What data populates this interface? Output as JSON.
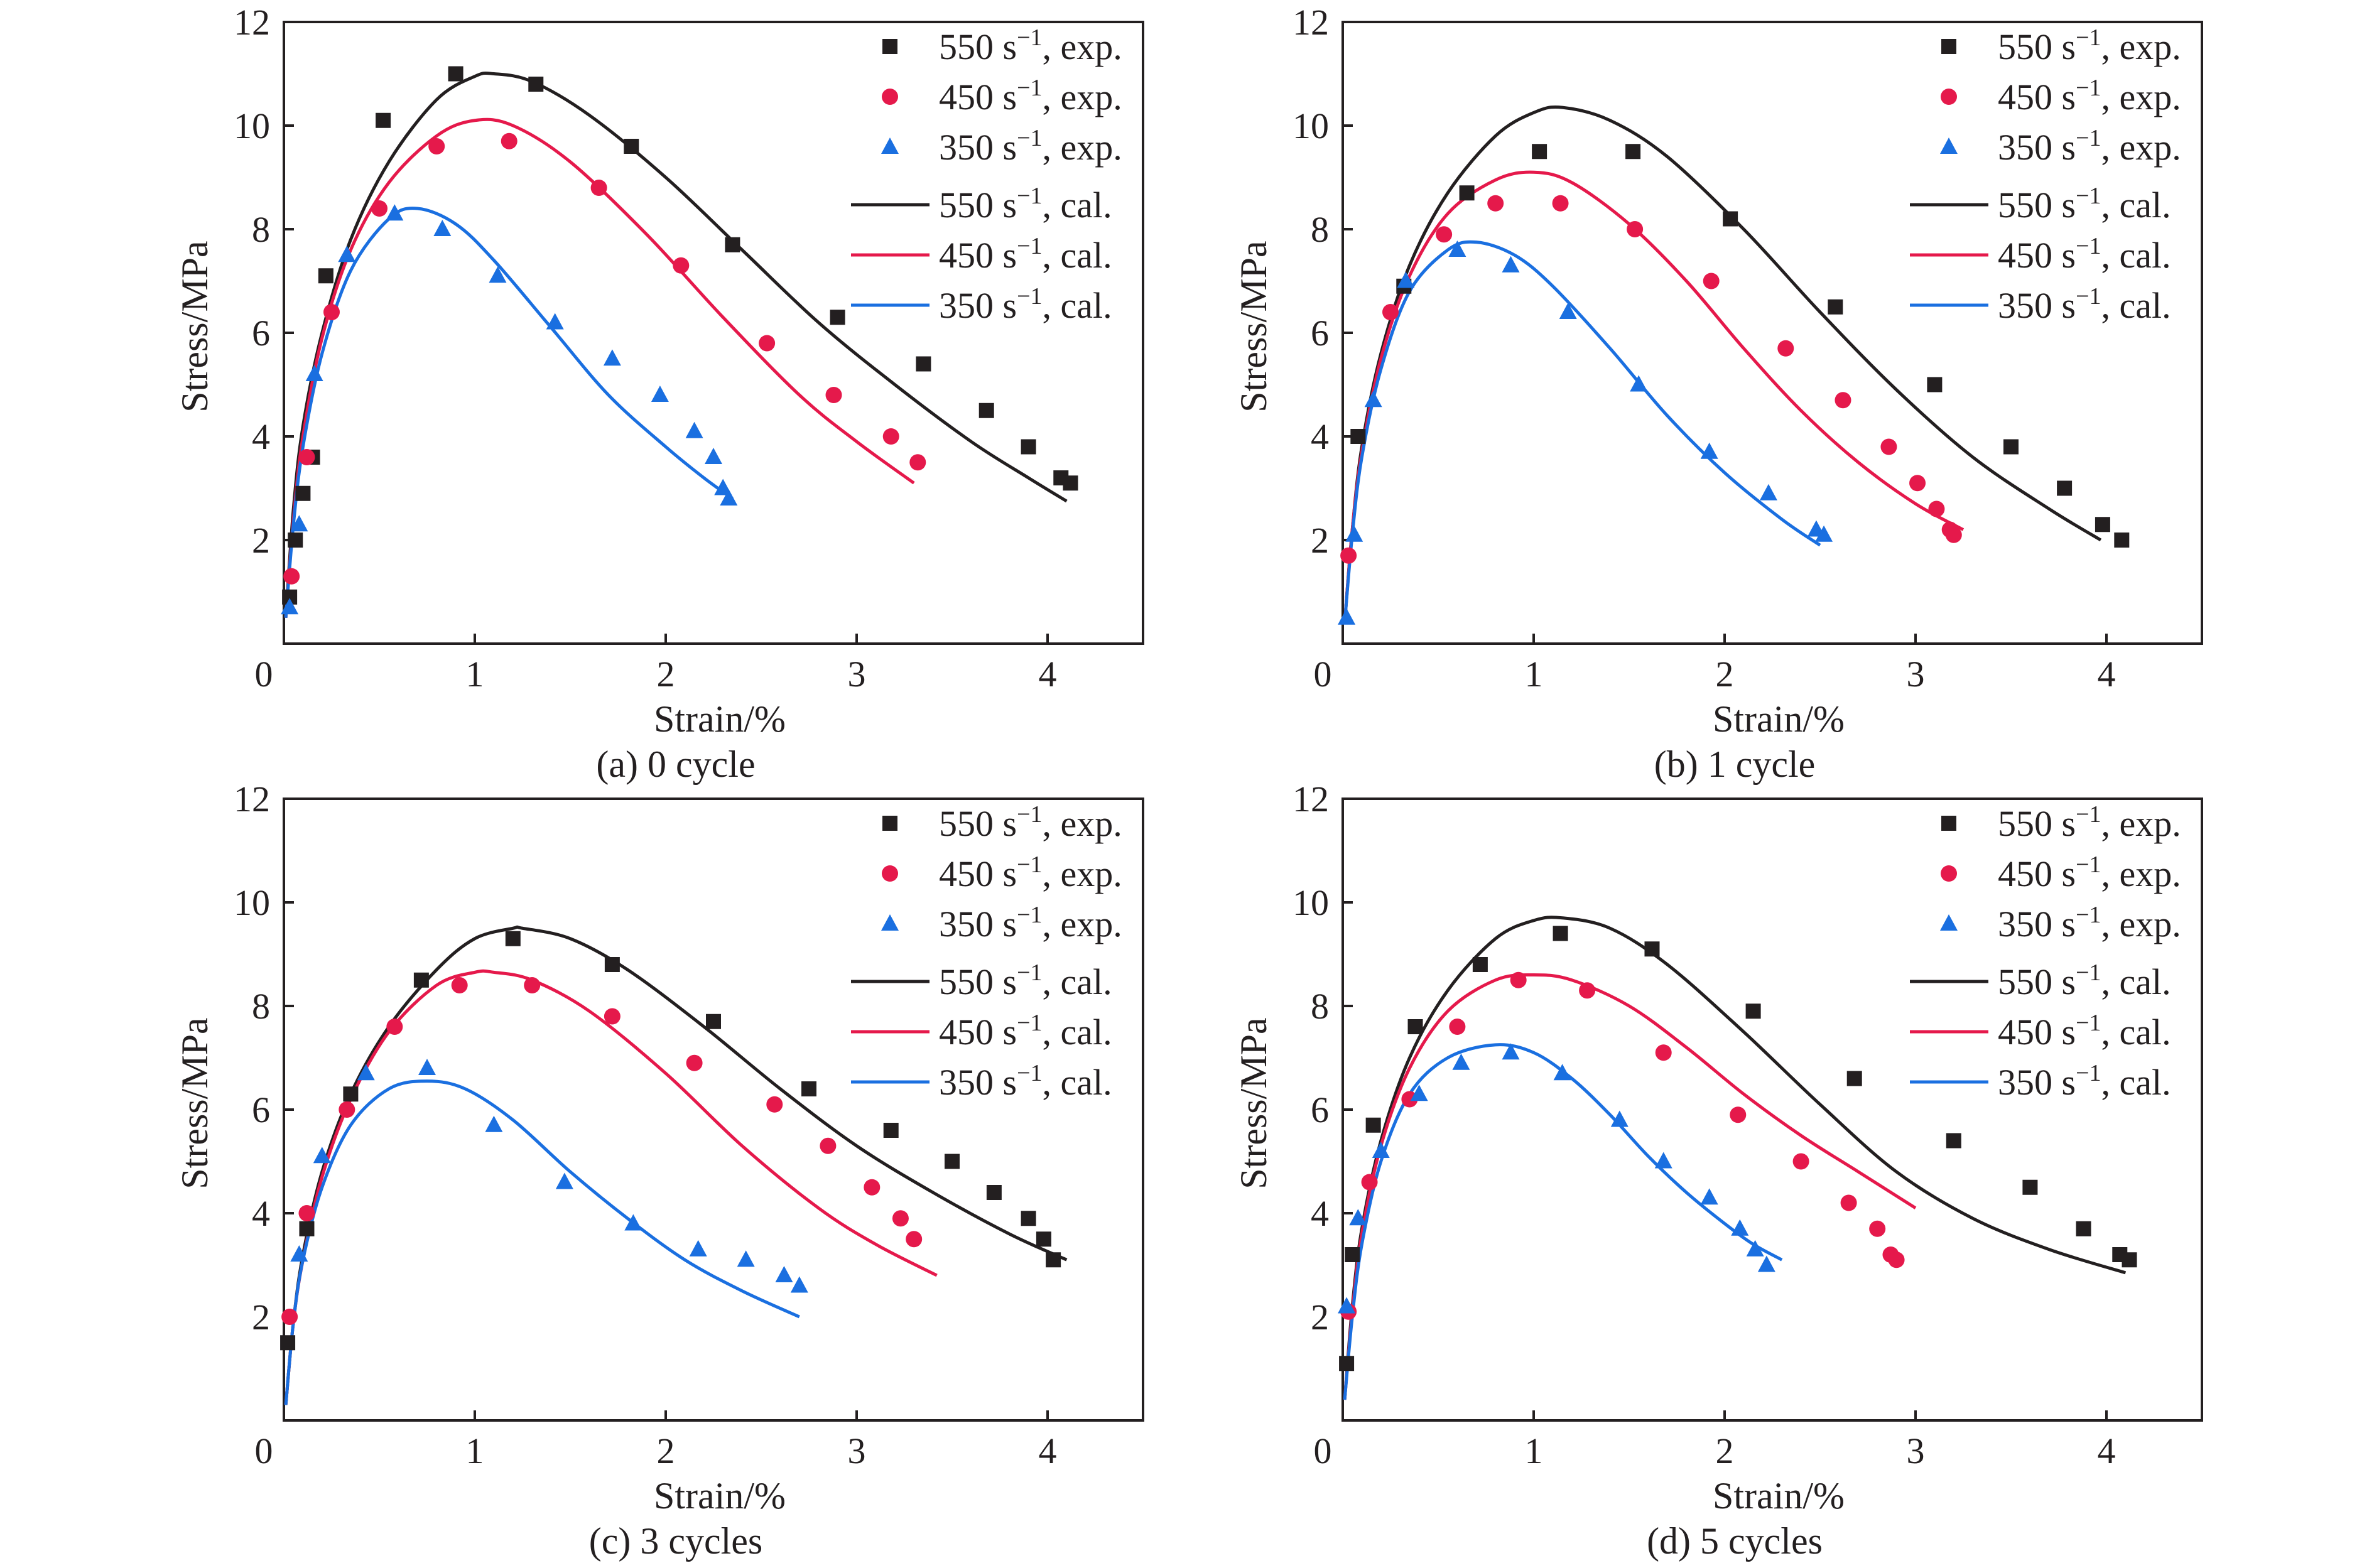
{
  "colors": {
    "black": "#231f20",
    "red": "#e5194b",
    "blue": "#1a6fe0"
  },
  "chart_data": [
    {
      "type": "scatter",
      "caption": "(a) 0 cycle",
      "xlabel": "Strain/%",
      "ylabel": "Stress/MPa",
      "xlim": [
        0,
        4.5
      ],
      "ylim": [
        0,
        12
      ],
      "xticks": [
        "0",
        "1",
        "2",
        "3",
        "4"
      ],
      "yticks": [
        "2",
        "4",
        "6",
        "8",
        "10",
        "12"
      ],
      "legend_position": "top-right",
      "series": [
        {
          "name": "550 s−1, exp.",
          "rate": "550",
          "kind": "exp.",
          "marker": "square",
          "color": "#231f20",
          "x": [
            0.03,
            0.06,
            0.1,
            0.15,
            0.22,
            0.52,
            0.9,
            1.32,
            1.82,
            2.35,
            2.9,
            3.35,
            3.68,
            3.9,
            4.07,
            4.12
          ],
          "y": [
            0.9,
            2.0,
            2.9,
            3.6,
            7.1,
            10.1,
            11.0,
            10.8,
            9.6,
            7.7,
            6.3,
            5.4,
            4.5,
            3.8,
            3.2,
            3.1
          ]
        },
        {
          "name": "450 s−1, exp.",
          "rate": "450",
          "kind": "exp.",
          "marker": "circle",
          "color": "#e5194b",
          "x": [
            0.04,
            0.12,
            0.25,
            0.5,
            0.8,
            1.18,
            1.65,
            2.08,
            2.53,
            2.88,
            3.18,
            3.32
          ],
          "y": [
            1.3,
            3.6,
            6.4,
            8.4,
            9.6,
            9.7,
            8.8,
            7.3,
            5.8,
            4.8,
            4.0,
            3.5
          ]
        },
        {
          "name": "350 s−1, exp.",
          "rate": "350",
          "kind": "exp.",
          "marker": "triangle",
          "color": "#1a6fe0",
          "x": [
            0.03,
            0.08,
            0.16,
            0.33,
            0.58,
            0.83,
            1.12,
            1.42,
            1.72,
            1.97,
            2.15,
            2.25,
            2.3,
            2.33
          ],
          "y": [
            0.7,
            2.3,
            5.2,
            7.5,
            8.3,
            8.0,
            7.1,
            6.2,
            5.5,
            4.8,
            4.1,
            3.6,
            3.0,
            2.8
          ]
        },
        {
          "name": "550 s−1, cal.",
          "rate": "550",
          "kind": "cal.",
          "marker": "line",
          "color": "#231f20",
          "x": [
            0.01,
            0.05,
            0.1,
            0.2,
            0.35,
            0.55,
            0.8,
            1.0,
            1.1,
            1.3,
            1.6,
            2.0,
            2.4,
            2.8,
            3.2,
            3.6,
            3.9,
            4.1
          ],
          "y": [
            0.5,
            2.6,
            4.2,
            6.0,
            7.8,
            9.3,
            10.5,
            10.95,
            11.0,
            10.85,
            10.2,
            9.0,
            7.6,
            6.2,
            5.0,
            3.9,
            3.2,
            2.75
          ]
        },
        {
          "name": "450 s−1, cal.",
          "rate": "450",
          "kind": "cal.",
          "marker": "line",
          "color": "#e5194b",
          "x": [
            0.01,
            0.05,
            0.1,
            0.2,
            0.35,
            0.55,
            0.8,
            1.0,
            1.2,
            1.5,
            1.9,
            2.3,
            2.7,
            3.0,
            3.3
          ],
          "y": [
            0.5,
            2.4,
            4.0,
            5.9,
            7.6,
            8.9,
            9.8,
            10.1,
            10.0,
            9.3,
            7.9,
            6.3,
            4.8,
            3.9,
            3.1
          ]
        },
        {
          "name": "350 s−1, cal.",
          "rate": "350",
          "kind": "cal.",
          "marker": "line",
          "color": "#1a6fe0",
          "x": [
            0.01,
            0.05,
            0.1,
            0.2,
            0.35,
            0.55,
            0.7,
            0.9,
            1.1,
            1.4,
            1.7,
            2.0,
            2.2,
            2.35
          ],
          "y": [
            0.5,
            2.3,
            3.8,
            5.6,
            7.2,
            8.2,
            8.4,
            8.1,
            7.4,
            6.1,
            4.8,
            3.8,
            3.2,
            2.8
          ]
        }
      ]
    },
    {
      "type": "scatter",
      "caption": "(b) 1 cycle",
      "xlabel": "Strain/%",
      "ylabel": "Stress/MPa",
      "xlim": [
        0,
        4.5
      ],
      "ylim": [
        0,
        12
      ],
      "xticks": [
        "0",
        "1",
        "2",
        "3",
        "4"
      ],
      "yticks": [
        "2",
        "4",
        "6",
        "8",
        "10",
        "12"
      ],
      "legend_position": "top-right",
      "series": [
        {
          "name": "550 s−1, exp.",
          "rate": "550",
          "kind": "exp.",
          "marker": "square",
          "color": "#231f20",
          "x": [
            0.08,
            0.32,
            0.65,
            1.03,
            1.52,
            2.03,
            2.58,
            3.1,
            3.5,
            3.78,
            3.98,
            4.08
          ],
          "y": [
            4.0,
            6.9,
            8.7,
            9.5,
            9.5,
            8.2,
            6.5,
            5.0,
            3.8,
            3.0,
            2.3,
            2.0
          ]
        },
        {
          "name": "450 s−1, exp.",
          "rate": "450",
          "kind": "exp.",
          "marker": "circle",
          "color": "#e5194b",
          "x": [
            0.03,
            0.25,
            0.53,
            0.8,
            1.14,
            1.53,
            1.93,
            2.32,
            2.62,
            2.86,
            3.01,
            3.11,
            3.18,
            3.2
          ],
          "y": [
            1.7,
            6.4,
            7.9,
            8.5,
            8.5,
            8.0,
            7.0,
            5.7,
            4.7,
            3.8,
            3.1,
            2.6,
            2.2,
            2.1
          ]
        },
        {
          "name": "350 s−1, exp.",
          "rate": "350",
          "kind": "exp.",
          "marker": "triangle",
          "color": "#1a6fe0",
          "x": [
            0.02,
            0.06,
            0.16,
            0.33,
            0.6,
            0.88,
            1.18,
            1.55,
            1.92,
            2.23,
            2.48,
            2.52
          ],
          "y": [
            0.5,
            2.1,
            4.7,
            7.0,
            7.6,
            7.3,
            6.4,
            5.0,
            3.7,
            2.9,
            2.2,
            2.1
          ]
        },
        {
          "name": "550 s−1, cal.",
          "rate": "550",
          "kind": "cal.",
          "marker": "line",
          "color": "#231f20",
          "x": [
            0.01,
            0.05,
            0.1,
            0.2,
            0.35,
            0.55,
            0.8,
            1.0,
            1.15,
            1.4,
            1.7,
            2.1,
            2.5,
            2.9,
            3.3,
            3.7,
            3.97
          ],
          "y": [
            0.4,
            2.2,
            3.8,
            5.6,
            7.3,
            8.7,
            9.8,
            10.25,
            10.35,
            10.1,
            9.4,
            8.0,
            6.4,
            4.9,
            3.6,
            2.6,
            2.0
          ]
        },
        {
          "name": "450 s−1, cal.",
          "rate": "450",
          "kind": "cal.",
          "marker": "line",
          "color": "#e5194b",
          "x": [
            0.01,
            0.05,
            0.1,
            0.2,
            0.35,
            0.55,
            0.8,
            1.0,
            1.2,
            1.5,
            1.8,
            2.1,
            2.4,
            2.7,
            3.0,
            3.25
          ],
          "y": [
            0.4,
            2.2,
            3.7,
            5.5,
            7.1,
            8.3,
            8.95,
            9.1,
            8.9,
            8.1,
            7.0,
            5.7,
            4.5,
            3.5,
            2.7,
            2.2
          ]
        },
        {
          "name": "350 s−1, cal.",
          "rate": "350",
          "kind": "cal.",
          "marker": "line",
          "color": "#1a6fe0",
          "x": [
            0.01,
            0.05,
            0.1,
            0.2,
            0.35,
            0.55,
            0.7,
            0.9,
            1.1,
            1.4,
            1.7,
            2.0,
            2.3,
            2.5
          ],
          "y": [
            0.4,
            2.1,
            3.6,
            5.3,
            6.8,
            7.6,
            7.75,
            7.5,
            6.9,
            5.7,
            4.4,
            3.3,
            2.4,
            1.9
          ]
        }
      ]
    },
    {
      "type": "scatter",
      "caption": "(c) 3 cycles",
      "xlabel": "Strain/%",
      "ylabel": "Stress/MPa",
      "xlim": [
        0,
        4.5
      ],
      "ylim": [
        0,
        12
      ],
      "xticks": [
        "0",
        "1",
        "2",
        "3",
        "4"
      ],
      "yticks": [
        "2",
        "4",
        "6",
        "8",
        "10",
        "12"
      ],
      "legend_position": "top-right",
      "series": [
        {
          "name": "550 s−1, exp.",
          "rate": "550",
          "kind": "exp.",
          "marker": "square",
          "color": "#231f20",
          "x": [
            0.02,
            0.12,
            0.35,
            0.72,
            1.2,
            1.72,
            2.25,
            2.75,
            3.18,
            3.5,
            3.72,
            3.9,
            3.98,
            4.03
          ],
          "y": [
            1.5,
            3.7,
            6.3,
            8.5,
            9.3,
            8.8,
            7.7,
            6.4,
            5.6,
            5.0,
            4.4,
            3.9,
            3.5,
            3.1
          ]
        },
        {
          "name": "450 s−1, exp.",
          "rate": "450",
          "kind": "exp.",
          "marker": "circle",
          "color": "#e5194b",
          "x": [
            0.03,
            0.12,
            0.33,
            0.58,
            0.92,
            1.3,
            1.72,
            2.15,
            2.57,
            2.85,
            3.08,
            3.23,
            3.3
          ],
          "y": [
            2.0,
            4.0,
            6.0,
            7.6,
            8.4,
            8.4,
            7.8,
            6.9,
            6.1,
            5.3,
            4.5,
            3.9,
            3.5
          ]
        },
        {
          "name": "350 s−1, exp.",
          "rate": "350",
          "kind": "exp.",
          "marker": "triangle",
          "color": "#1a6fe0",
          "x": [
            0.08,
            0.2,
            0.43,
            0.75,
            1.1,
            1.47,
            1.83,
            2.17,
            2.42,
            2.62,
            2.7
          ],
          "y": [
            3.2,
            5.1,
            6.7,
            6.8,
            5.7,
            4.6,
            3.8,
            3.3,
            3.1,
            2.8,
            2.6
          ]
        },
        {
          "name": "550 s−1, cal.",
          "rate": "550",
          "kind": "cal.",
          "marker": "line",
          "color": "#231f20",
          "x": [
            0.01,
            0.05,
            0.1,
            0.2,
            0.35,
            0.55,
            0.8,
            1.0,
            1.2,
            1.25,
            1.5,
            1.8,
            2.2,
            2.6,
            3.0,
            3.4,
            3.8,
            4.1
          ],
          "y": [
            0.3,
            1.9,
            3.2,
            4.8,
            6.3,
            7.6,
            8.7,
            9.3,
            9.5,
            9.5,
            9.3,
            8.7,
            7.6,
            6.4,
            5.3,
            4.4,
            3.6,
            3.1
          ]
        },
        {
          "name": "450 s−1, cal.",
          "rate": "450",
          "kind": "cal.",
          "marker": "line",
          "color": "#e5194b",
          "x": [
            0.01,
            0.05,
            0.1,
            0.2,
            0.35,
            0.55,
            0.8,
            1.0,
            1.1,
            1.3,
            1.6,
            2.0,
            2.4,
            2.8,
            3.1,
            3.42
          ],
          "y": [
            0.3,
            1.9,
            3.1,
            4.7,
            6.2,
            7.5,
            8.4,
            8.65,
            8.65,
            8.5,
            7.9,
            6.7,
            5.3,
            4.1,
            3.4,
            2.8
          ]
        },
        {
          "name": "350 s−1, cal.",
          "rate": "350",
          "kind": "cal.",
          "marker": "line",
          "color": "#1a6fe0",
          "x": [
            0.01,
            0.05,
            0.1,
            0.2,
            0.35,
            0.55,
            0.75,
            0.95,
            1.2,
            1.5,
            1.8,
            2.1,
            2.4,
            2.7
          ],
          "y": [
            0.3,
            1.9,
            3.1,
            4.5,
            5.7,
            6.4,
            6.55,
            6.4,
            5.8,
            4.8,
            3.9,
            3.1,
            2.5,
            2.0
          ]
        }
      ]
    },
    {
      "type": "scatter",
      "caption": "(d) 5 cycles",
      "xlabel": "Strain/%",
      "ylabel": "Stress/MPa",
      "xlim": [
        0,
        4.5
      ],
      "ylim": [
        0,
        12
      ],
      "xticks": [
        "0",
        "1",
        "2",
        "3",
        "4"
      ],
      "yticks": [
        "2",
        "4",
        "6",
        "8",
        "10",
        "12"
      ],
      "legend_position": "top-right",
      "series": [
        {
          "name": "550 s−1, exp.",
          "rate": "550",
          "kind": "exp.",
          "marker": "square",
          "color": "#231f20",
          "x": [
            0.02,
            0.05,
            0.16,
            0.38,
            0.72,
            1.14,
            1.62,
            2.15,
            2.68,
            3.2,
            3.6,
            3.88,
            4.07,
            4.12
          ],
          "y": [
            1.1,
            3.2,
            5.7,
            7.6,
            8.8,
            9.4,
            9.1,
            7.9,
            6.6,
            5.4,
            4.5,
            3.7,
            3.2,
            3.1
          ]
        },
        {
          "name": "450 s−1, exp.",
          "rate": "450",
          "kind": "exp.",
          "marker": "circle",
          "color": "#e5194b",
          "x": [
            0.03,
            0.14,
            0.35,
            0.6,
            0.92,
            1.28,
            1.68,
            2.07,
            2.4,
            2.65,
            2.8,
            2.87,
            2.9
          ],
          "y": [
            2.1,
            4.6,
            6.2,
            7.6,
            8.5,
            8.3,
            7.1,
            5.9,
            5.0,
            4.2,
            3.7,
            3.2,
            3.1
          ]
        },
        {
          "name": "350 s−1, exp.",
          "rate": "350",
          "kind": "exp.",
          "marker": "triangle",
          "color": "#1a6fe0",
          "x": [
            0.02,
            0.08,
            0.2,
            0.4,
            0.62,
            0.88,
            1.15,
            1.45,
            1.68,
            1.92,
            2.08,
            2.16,
            2.22
          ],
          "y": [
            2.2,
            3.9,
            5.2,
            6.3,
            6.9,
            7.1,
            6.7,
            5.8,
            5.0,
            4.3,
            3.7,
            3.3,
            3.0
          ]
        },
        {
          "name": "550 s−1, cal.",
          "rate": "550",
          "kind": "cal.",
          "marker": "line",
          "color": "#231f20",
          "x": [
            0.01,
            0.05,
            0.1,
            0.2,
            0.35,
            0.55,
            0.8,
            1.0,
            1.15,
            1.4,
            1.7,
            2.1,
            2.5,
            2.9,
            3.3,
            3.7,
            4.1
          ],
          "y": [
            0.4,
            2.2,
            3.7,
            5.4,
            7.0,
            8.3,
            9.3,
            9.65,
            9.7,
            9.5,
            8.8,
            7.5,
            6.1,
            4.8,
            3.9,
            3.3,
            2.85
          ]
        },
        {
          "name": "450 s−1, cal.",
          "rate": "450",
          "kind": "cal.",
          "marker": "line",
          "color": "#e5194b",
          "x": [
            0.01,
            0.05,
            0.1,
            0.2,
            0.35,
            0.55,
            0.8,
            1.0,
            1.2,
            1.5,
            1.8,
            2.1,
            2.4,
            2.7,
            3.0
          ],
          "y": [
            0.4,
            2.1,
            3.6,
            5.3,
            6.8,
            7.9,
            8.5,
            8.6,
            8.5,
            8.0,
            7.2,
            6.3,
            5.5,
            4.8,
            4.1
          ]
        },
        {
          "name": "350 s−1, cal.",
          "rate": "350",
          "kind": "cal.",
          "marker": "line",
          "color": "#1a6fe0",
          "x": [
            0.01,
            0.05,
            0.1,
            0.2,
            0.35,
            0.55,
            0.8,
            1.0,
            1.2,
            1.4,
            1.6,
            1.8,
            2.0,
            2.15,
            2.3
          ],
          "y": [
            0.4,
            2.0,
            3.4,
            5.0,
            6.3,
            7.0,
            7.25,
            7.1,
            6.6,
            5.9,
            5.1,
            4.4,
            3.8,
            3.4,
            3.1
          ]
        }
      ]
    }
  ]
}
